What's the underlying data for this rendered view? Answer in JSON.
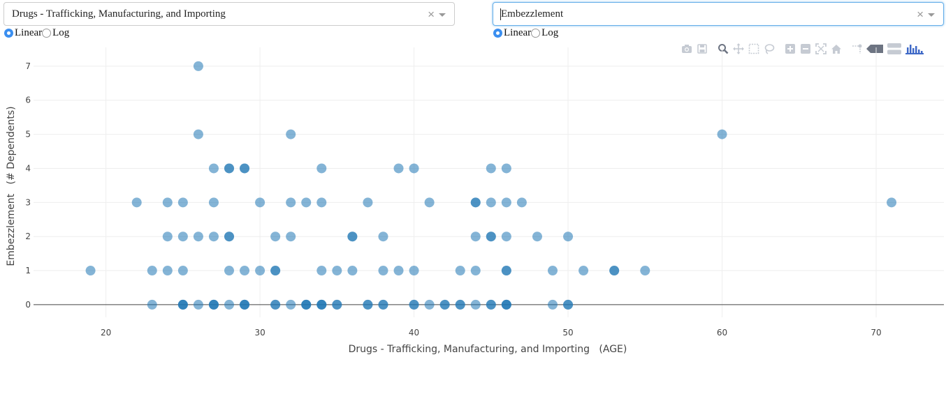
{
  "controls": {
    "x_dropdown": {
      "value": "Drugs - Trafficking, Manufacturing, and Importing"
    },
    "y_dropdown": {
      "value": "Embezzlement"
    },
    "x_scale": {
      "linear_label": "Linear",
      "log_label": "Log",
      "selected": "Linear"
    },
    "y_scale": {
      "linear_label": "Linear",
      "log_label": "Log",
      "selected": "Linear"
    },
    "clear_glyph": "×"
  },
  "modebar": {
    "icons": [
      "camera-icon",
      "save-icon",
      "zoom-icon",
      "pan-icon",
      "box-select-icon",
      "lasso-select-icon",
      "zoom-in-icon",
      "zoom-out-icon",
      "autoscale-icon",
      "reset-axes-icon",
      "spike-lines-icon",
      "hover-closest-icon",
      "hover-compare-icon",
      "plotly-logo-icon"
    ],
    "active": "zoom-icon"
  },
  "colors": {
    "marker": "#1f77b4",
    "marker_opacity": 0.55,
    "grid": "#eeeeee",
    "zero_line": "#444444"
  },
  "chart_data": {
    "type": "scatter",
    "xlabel": "Drugs - Trafficking, Manufacturing, and Importing   (AGE)",
    "ylabel": "Embezzlement   (# Dependents)",
    "xlim": [
      15.3,
      74.4
    ],
    "ylim": [
      -0.37,
      7.55
    ],
    "xticks": [
      20,
      30,
      40,
      50,
      60,
      70
    ],
    "yticks": [
      0,
      1,
      2,
      3,
      4,
      5,
      6,
      7
    ],
    "grid": true,
    "points": [
      [
        26,
        7
      ],
      [
        26,
        5
      ],
      [
        32,
        5
      ],
      [
        60,
        5
      ],
      [
        27,
        4
      ],
      [
        28,
        4
      ],
      [
        28,
        4
      ],
      [
        29,
        4
      ],
      [
        29,
        4
      ],
      [
        34,
        4
      ],
      [
        39,
        4
      ],
      [
        40,
        4
      ],
      [
        45,
        4
      ],
      [
        46,
        4
      ],
      [
        22,
        3
      ],
      [
        24,
        3
      ],
      [
        25,
        3
      ],
      [
        27,
        3
      ],
      [
        30,
        3
      ],
      [
        32,
        3
      ],
      [
        33,
        3
      ],
      [
        34,
        3
      ],
      [
        37,
        3
      ],
      [
        41,
        3
      ],
      [
        44,
        3
      ],
      [
        44,
        3
      ],
      [
        45,
        3
      ],
      [
        46,
        3
      ],
      [
        47,
        3
      ],
      [
        71,
        3
      ],
      [
        24,
        2
      ],
      [
        25,
        2
      ],
      [
        26,
        2
      ],
      [
        27,
        2
      ],
      [
        28,
        2
      ],
      [
        28,
        2
      ],
      [
        31,
        2
      ],
      [
        32,
        2
      ],
      [
        36,
        2
      ],
      [
        36,
        2
      ],
      [
        38,
        2
      ],
      [
        44,
        2
      ],
      [
        45,
        2
      ],
      [
        45,
        2
      ],
      [
        46,
        2
      ],
      [
        48,
        2
      ],
      [
        50,
        2
      ],
      [
        19,
        1
      ],
      [
        23,
        1
      ],
      [
        24,
        1
      ],
      [
        25,
        1
      ],
      [
        28,
        1
      ],
      [
        29,
        1
      ],
      [
        30,
        1
      ],
      [
        31,
        1
      ],
      [
        31,
        1
      ],
      [
        34,
        1
      ],
      [
        35,
        1
      ],
      [
        36,
        1
      ],
      [
        38,
        1
      ],
      [
        39,
        1
      ],
      [
        40,
        1
      ],
      [
        43,
        1
      ],
      [
        44,
        1
      ],
      [
        46,
        1
      ],
      [
        46,
        1
      ],
      [
        49,
        1
      ],
      [
        51,
        1
      ],
      [
        53,
        1
      ],
      [
        53,
        1
      ],
      [
        55,
        1
      ],
      [
        23,
        0
      ],
      [
        25,
        0
      ],
      [
        25,
        0
      ],
      [
        25,
        0
      ],
      [
        26,
        0
      ],
      [
        27,
        0
      ],
      [
        27,
        0
      ],
      [
        27,
        0
      ],
      [
        28,
        0
      ],
      [
        29,
        0
      ],
      [
        29,
        0
      ],
      [
        29,
        0
      ],
      [
        31,
        0
      ],
      [
        31,
        0
      ],
      [
        32,
        0
      ],
      [
        33,
        0
      ],
      [
        33,
        0
      ],
      [
        33,
        0
      ],
      [
        34,
        0
      ],
      [
        34,
        0
      ],
      [
        34,
        0
      ],
      [
        35,
        0
      ],
      [
        35,
        0
      ],
      [
        37,
        0
      ],
      [
        37,
        0
      ],
      [
        38,
        0
      ],
      [
        38,
        0
      ],
      [
        40,
        0
      ],
      [
        40,
        0
      ],
      [
        41,
        0
      ],
      [
        42,
        0
      ],
      [
        42,
        0
      ],
      [
        43,
        0
      ],
      [
        43,
        0
      ],
      [
        44,
        0
      ],
      [
        45,
        0
      ],
      [
        45,
        0
      ],
      [
        46,
        0
      ],
      [
        46,
        0
      ],
      [
        46,
        0
      ],
      [
        49,
        0
      ],
      [
        50,
        0
      ],
      [
        50,
        0
      ]
    ]
  }
}
